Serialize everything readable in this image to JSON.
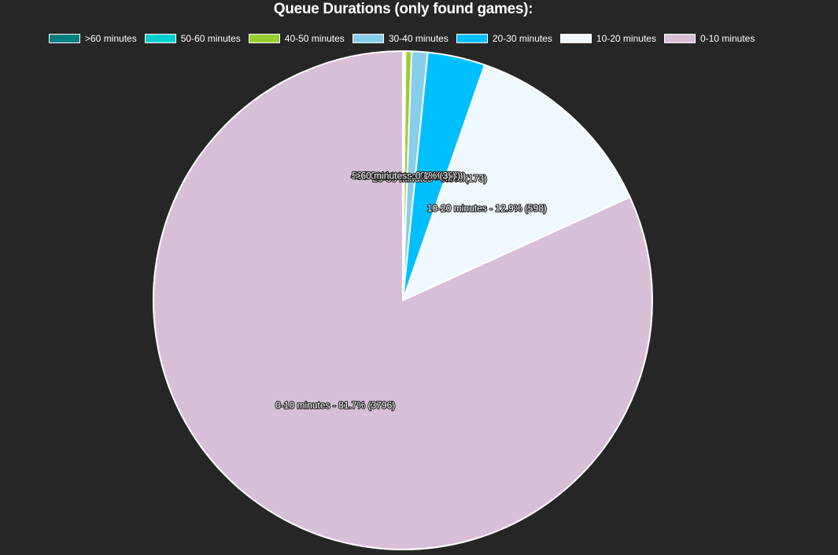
{
  "chart_data": {
    "type": "pie",
    "title": "Queue Durations (only found games):",
    "legend_position": "top",
    "slices": [
      {
        "label": ">60 minutes",
        "value": 3,
        "percent": 0.1,
        "color": "#008080",
        "slice_text": ">60 minutes - 0.1% (3)"
      },
      {
        "label": "50-60 minutes",
        "value": 5,
        "percent": 0.1,
        "color": "#00CED1",
        "slice_text": "50-60 minutes - 0.1% (5)"
      },
      {
        "label": "40-50 minutes",
        "value": 18,
        "percent": 0.4,
        "color": "#9ACD32",
        "slice_text": "40-50 minutes - 0.4% (18)"
      },
      {
        "label": "30-40 minutes",
        "value": 48,
        "percent": 1.0,
        "color": "#87CEEB",
        "slice_text": "30-40 minutes - 1.0% (48)"
      },
      {
        "label": "20-30 minutes",
        "value": 173,
        "percent": 3.7,
        "color": "#00BFFF",
        "slice_text": "20-30 minutes - 3.7% (173)"
      },
      {
        "label": "10-20 minutes",
        "value": 598,
        "percent": 12.9,
        "color": "#F0F8FF",
        "slice_text": "10-20 minutes - 12.9% (598)"
      },
      {
        "label": "0-10 minutes",
        "value": 3796,
        "percent": 81.7,
        "color": "#D8BFD8",
        "slice_text": "0-10 minutes - 81.7% (3796)"
      }
    ]
  }
}
